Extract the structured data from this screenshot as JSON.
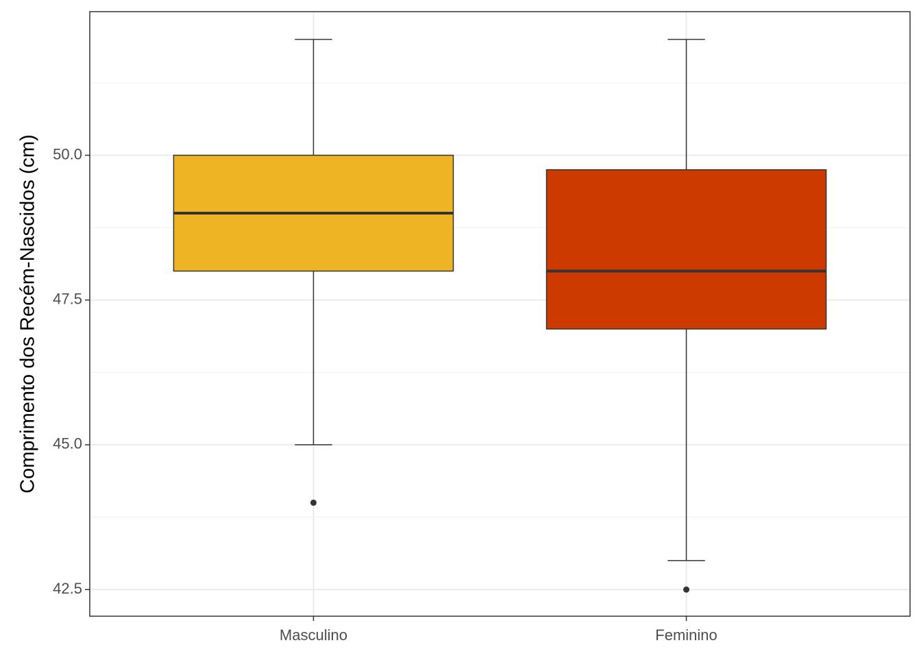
{
  "chart_data": {
    "type": "box",
    "y_label": "Comprimento dos Recém-Nascidos (cm)",
    "categories": [
      "Masculino",
      "Feminino"
    ],
    "colors": [
      "#efb423",
      "#cc3a00"
    ],
    "boxes": [
      {
        "whisker_low": 45,
        "q1": 48,
        "median": 49,
        "q3": 50,
        "whisker_high": 52,
        "outliers": [
          44
        ]
      },
      {
        "whisker_low": 43,
        "q1": 47,
        "median": 48,
        "q3": 49.75,
        "whisker_high": 52,
        "outliers": [
          42.5
        ]
      }
    ],
    "ylim": [
      42.04,
      52.48
    ],
    "yticks": [
      {
        "value": 42.5,
        "label": "42.5"
      },
      {
        "value": 45,
        "label": "45.0"
      },
      {
        "value": 47.5,
        "label": "47.5"
      },
      {
        "value": 50,
        "label": "50.0"
      }
    ],
    "minor_yticks": [
      43.75,
      46.25,
      48.75,
      51.25
    ],
    "grid": true
  }
}
